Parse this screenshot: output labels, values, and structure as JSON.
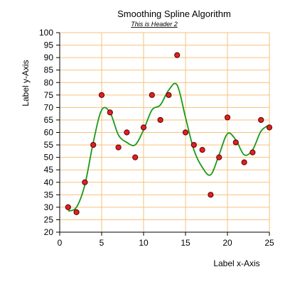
{
  "chart_data": {
    "type": "scatter",
    "title": "Smoothing Spline Algorithm",
    "subtitle": "This is Header 2",
    "xlabel": "Label x-Axis",
    "ylabel": "Label y-Axis",
    "xlim": [
      0,
      25
    ],
    "ylim": [
      20,
      100
    ],
    "x_ticks": [
      "0",
      "5",
      "10",
      "15",
      "20",
      "25"
    ],
    "y_ticks": [
      "20",
      "25",
      "30",
      "35",
      "40",
      "45",
      "50",
      "55",
      "60",
      "65",
      "70",
      "75",
      "80",
      "85",
      "90",
      "95",
      "100"
    ],
    "grid": true,
    "series": [
      {
        "x": [
          1,
          2,
          3,
          4,
          5,
          6,
          7,
          8,
          9,
          10,
          11,
          12,
          13,
          14,
          15,
          16,
          17,
          18,
          19,
          20,
          21,
          22,
          23,
          24,
          25
        ],
        "y": [
          30,
          28,
          40,
          55,
          75,
          68,
          54,
          60,
          50,
          62,
          75,
          65,
          75,
          91,
          60,
          55,
          53,
          35,
          50,
          66,
          56,
          48,
          52,
          65,
          62
        ]
      }
    ],
    "smoothing_curve": {
      "x": [
        1,
        2,
        3,
        4,
        5,
        6,
        7,
        8,
        9,
        10,
        11,
        12,
        13,
        14,
        15,
        16,
        17,
        18,
        19,
        20,
        21,
        22,
        23,
        24,
        25
      ],
      "y": [
        28.5,
        30,
        39,
        56,
        69,
        68,
        59,
        56,
        55,
        61,
        69,
        71,
        77,
        79,
        66,
        53,
        46,
        43,
        51,
        59.5,
        57,
        51,
        53,
        60.5,
        63
      ]
    },
    "colors": {
      "grid": "#f5c27a",
      "axis": "#000000",
      "curve": "#1a9a1a",
      "marker_fill": "#e02020",
      "marker_stroke": "#5a0000"
    }
  }
}
